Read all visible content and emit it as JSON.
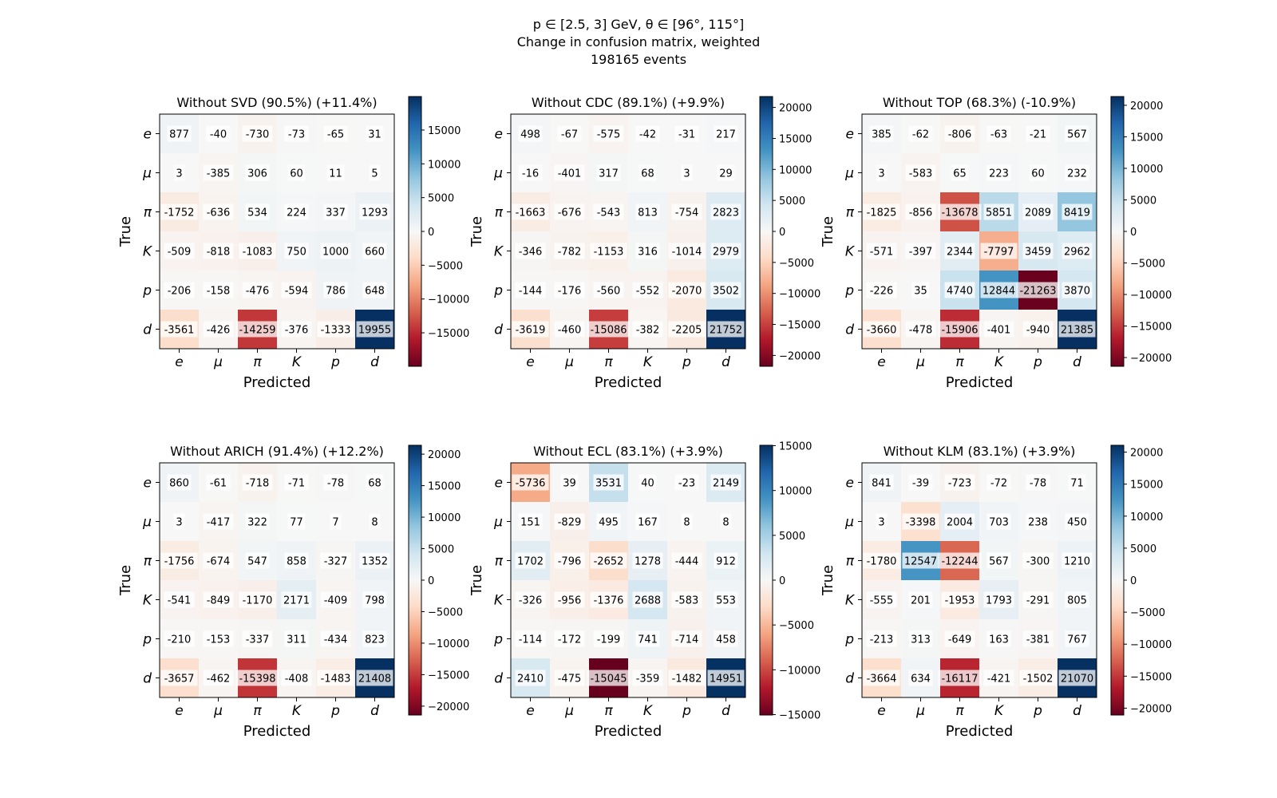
{
  "figure": {
    "title_lines": [
      "p ∈ [2.5, 3] GeV, θ ∈ [96°, 115°]",
      "Change in confusion matrix, weighted",
      "198165 events"
    ]
  },
  "chart_data": [
    {
      "type": "heatmap",
      "title": "Without SVD (90.5%) (+11.4%)",
      "xlabel": "Predicted",
      "ylabel": "True",
      "x_categories": [
        "e",
        "μ",
        "π",
        "K",
        "p",
        "d"
      ],
      "y_categories": [
        "e",
        "μ",
        "π",
        "K",
        "p",
        "d"
      ],
      "values": [
        [
          877,
          -40,
          -730,
          -73,
          -65,
          31
        ],
        [
          3,
          -385,
          306,
          60,
          11,
          5
        ],
        [
          -1752,
          -636,
          534,
          224,
          337,
          1293
        ],
        [
          -509,
          -818,
          -1083,
          750,
          1000,
          660
        ],
        [
          -206,
          -158,
          -476,
          -594,
          786,
          648
        ],
        [
          -3561,
          -426,
          -14259,
          -376,
          -1333,
          19955
        ]
      ],
      "colorbar": {
        "vmin": -19955,
        "vmax": 19955,
        "ticks": [
          -15000,
          -10000,
          -5000,
          0,
          5000,
          10000,
          15000
        ]
      },
      "colormap": "RdBu"
    },
    {
      "type": "heatmap",
      "title": "Without CDC (89.1%) (+9.9%)",
      "xlabel": "Predicted",
      "ylabel": "True",
      "x_categories": [
        "e",
        "μ",
        "π",
        "K",
        "p",
        "d"
      ],
      "y_categories": [
        "e",
        "μ",
        "π",
        "K",
        "p",
        "d"
      ],
      "values": [
        [
          498,
          -67,
          -575,
          -42,
          -31,
          217
        ],
        [
          -16,
          -401,
          317,
          68,
          3,
          29
        ],
        [
          -1663,
          -676,
          -543,
          813,
          -754,
          2823
        ],
        [
          -346,
          -782,
          -1153,
          316,
          -1014,
          2979
        ],
        [
          -144,
          -176,
          -560,
          -552,
          -2070,
          3502
        ],
        [
          -3619,
          -460,
          -15086,
          -382,
          -2205,
          21752
        ]
      ],
      "colorbar": {
        "vmin": -21752,
        "vmax": 21752,
        "ticks": [
          -20000,
          -15000,
          -10000,
          -5000,
          0,
          5000,
          10000,
          15000,
          20000
        ]
      },
      "colormap": "RdBu"
    },
    {
      "type": "heatmap",
      "title": "Without TOP (68.3%) (-10.9%)",
      "xlabel": "Predicted",
      "ylabel": "True",
      "x_categories": [
        "e",
        "μ",
        "π",
        "K",
        "p",
        "d"
      ],
      "y_categories": [
        "e",
        "μ",
        "π",
        "K",
        "p",
        "d"
      ],
      "values": [
        [
          385,
          -62,
          -806,
          -63,
          -21,
          567
        ],
        [
          3,
          -583,
          65,
          223,
          60,
          232
        ],
        [
          -1825,
          -856,
          -13678,
          5851,
          2089,
          8419
        ],
        [
          -571,
          -397,
          2344,
          -7797,
          3459,
          2962
        ],
        [
          -226,
          35,
          4740,
          12844,
          -21263,
          3870
        ],
        [
          -3660,
          -478,
          -15906,
          -401,
          -940,
          21385
        ]
      ],
      "colorbar": {
        "vmin": -21385,
        "vmax": 21385,
        "ticks": [
          -20000,
          -15000,
          -10000,
          -5000,
          0,
          5000,
          10000,
          15000,
          20000
        ]
      },
      "colormap": "RdBu"
    },
    {
      "type": "heatmap",
      "title": "Without ARICH (91.4%) (+12.2%)",
      "xlabel": "Predicted",
      "ylabel": "True",
      "x_categories": [
        "e",
        "μ",
        "π",
        "K",
        "p",
        "d"
      ],
      "y_categories": [
        "e",
        "μ",
        "π",
        "K",
        "p",
        "d"
      ],
      "values": [
        [
          860,
          -61,
          -718,
          -71,
          -78,
          68
        ],
        [
          3,
          -417,
          322,
          77,
          7,
          8
        ],
        [
          -1756,
          -674,
          547,
          858,
          -327,
          1352
        ],
        [
          -541,
          -849,
          -1170,
          2171,
          -409,
          798
        ],
        [
          -210,
          -153,
          -337,
          311,
          -434,
          823
        ],
        [
          -3657,
          -462,
          -15398,
          -408,
          -1483,
          21408
        ]
      ],
      "colorbar": {
        "vmin": -21408,
        "vmax": 21408,
        "ticks": [
          -20000,
          -15000,
          -10000,
          -5000,
          0,
          5000,
          10000,
          15000,
          20000
        ]
      },
      "colormap": "RdBu"
    },
    {
      "type": "heatmap",
      "title": "Without ECL (83.1%) (+3.9%)",
      "xlabel": "Predicted",
      "ylabel": "True",
      "x_categories": [
        "e",
        "μ",
        "π",
        "K",
        "p",
        "d"
      ],
      "y_categories": [
        "e",
        "μ",
        "π",
        "K",
        "p",
        "d"
      ],
      "values": [
        [
          -5736,
          39,
          3531,
          40,
          -23,
          2149
        ],
        [
          151,
          -829,
          495,
          167,
          8,
          8
        ],
        [
          1702,
          -796,
          -2652,
          1278,
          -444,
          912
        ],
        [
          -326,
          -956,
          -1376,
          2688,
          -583,
          553
        ],
        [
          -114,
          -172,
          -199,
          741,
          -714,
          458
        ],
        [
          2410,
          -475,
          -15045,
          -359,
          -1482,
          14951
        ]
      ],
      "colorbar": {
        "vmin": -15045,
        "vmax": 15045,
        "ticks": [
          -15000,
          -10000,
          -5000,
          0,
          5000,
          10000,
          15000
        ]
      },
      "colormap": "RdBu"
    },
    {
      "type": "heatmap",
      "title": "Without KLM (83.1%) (+3.9%)",
      "xlabel": "Predicted",
      "ylabel": "True",
      "x_categories": [
        "e",
        "μ",
        "π",
        "K",
        "p",
        "d"
      ],
      "y_categories": [
        "e",
        "μ",
        "π",
        "K",
        "p",
        "d"
      ],
      "values": [
        [
          841,
          -39,
          -723,
          -72,
          -78,
          71
        ],
        [
          3,
          -3398,
          2004,
          703,
          238,
          450
        ],
        [
          -1780,
          12547,
          -12244,
          567,
          -300,
          1210
        ],
        [
          -555,
          201,
          -1953,
          1793,
          -291,
          805
        ],
        [
          -213,
          313,
          -649,
          163,
          -381,
          767
        ],
        [
          -3664,
          634,
          -16117,
          -421,
          -1502,
          21070
        ]
      ],
      "colorbar": {
        "vmin": -21070,
        "vmax": 21070,
        "ticks": [
          -20000,
          -15000,
          -10000,
          -5000,
          0,
          5000,
          10000,
          15000,
          20000
        ]
      },
      "colormap": "RdBu"
    }
  ]
}
